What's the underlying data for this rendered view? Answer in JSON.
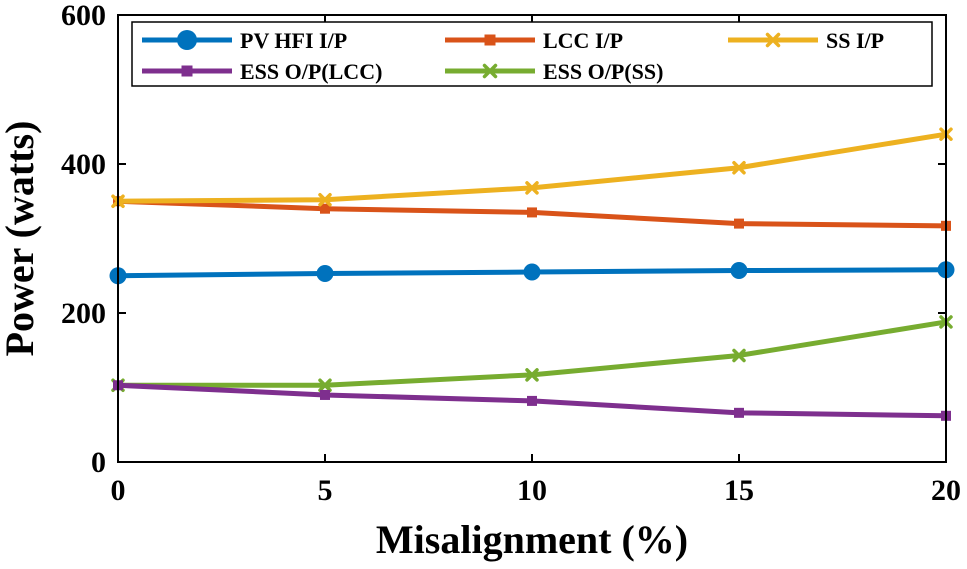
{
  "chart_data": {
    "type": "line",
    "title": "",
    "xlabel": "Misalignment (%)",
    "ylabel": "Power (watts)",
    "x": [
      0,
      5,
      10,
      15,
      20
    ],
    "xlim": [
      0,
      20
    ],
    "ylim": [
      0,
      600
    ],
    "xticks": [
      0,
      5,
      10,
      15,
      20
    ],
    "yticks": [
      0,
      200,
      400,
      600
    ],
    "grid": false,
    "legend_position": "top",
    "series": [
      {
        "name": "PV HFI I/P",
        "color": "#0072BD",
        "marker": "circle",
        "values": [
          250,
          253,
          255,
          257,
          258
        ]
      },
      {
        "name": "LCC I/P",
        "color": "#D95319",
        "marker": "square",
        "values": [
          350,
          340,
          335,
          320,
          317
        ]
      },
      {
        "name": "SS I/P",
        "color": "#EDB120",
        "marker": "x",
        "values": [
          350,
          352,
          368,
          395,
          440
        ]
      },
      {
        "name": "ESS O/P(LCC)",
        "color": "#7E2F8E",
        "marker": "square",
        "values": [
          103,
          90,
          82,
          66,
          62
        ]
      },
      {
        "name": "ESS O/P(SS)",
        "color": "#77AC30",
        "marker": "x",
        "values": [
          103,
          103,
          117,
          143,
          188
        ]
      }
    ]
  }
}
